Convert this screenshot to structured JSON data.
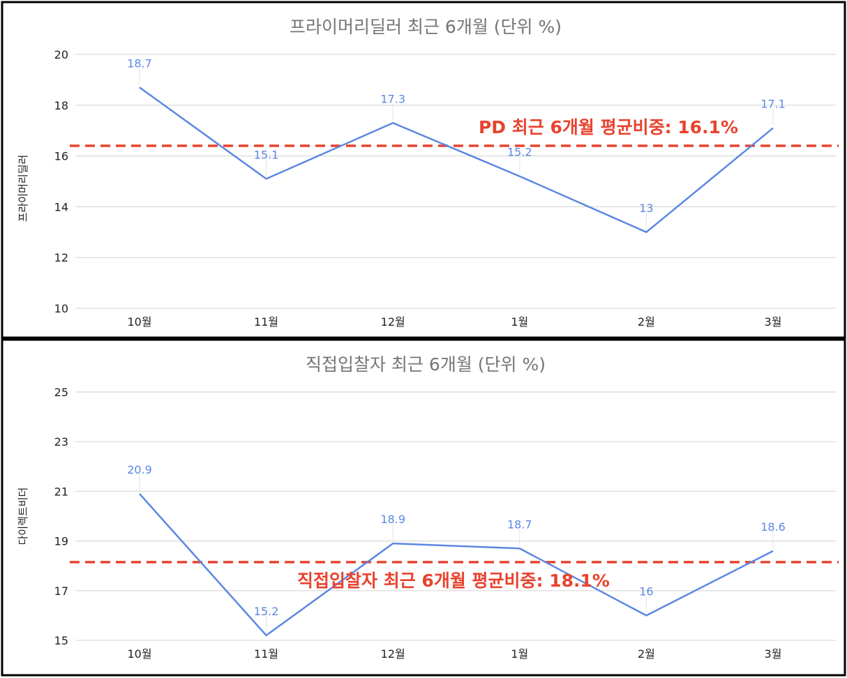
{
  "colors": {
    "line": "#5b87e3",
    "avg_line": "#e8432e",
    "grid": "#d9d9d9",
    "title": "#757575",
    "tick": "#222222",
    "frame": "#000000"
  },
  "chart_data": [
    {
      "type": "line",
      "title": "프라이머리딜러 최근 6개월 (단위 %)",
      "ylabel": "프라이머리딜러",
      "xlabel": "",
      "categories": [
        "10월",
        "11월",
        "12월",
        "1월",
        "2월",
        "3월"
      ],
      "series": [
        {
          "values": [
            18.7,
            15.1,
            17.3,
            15.2,
            13,
            17.1
          ]
        }
      ],
      "data_labels": [
        "18.7",
        "15.1",
        "17.3",
        "15.2",
        "13",
        "17.1"
      ],
      "ylim": [
        10,
        20
      ],
      "yticks": [
        10,
        12,
        14,
        16,
        18,
        20
      ],
      "grid": true,
      "legend": "none",
      "reference_line": {
        "value": 16.4,
        "style": "dashed"
      },
      "annotation": "PD 최근 6개월 평균비중: 16.1%"
    },
    {
      "type": "line",
      "title": "직접입찰자 최근 6개월 (단위 %)",
      "ylabel": "다이렉트비더",
      "xlabel": "",
      "categories": [
        "10월",
        "11월",
        "12월",
        "1월",
        "2월",
        "3월"
      ],
      "series": [
        {
          "values": [
            20.9,
            15.2,
            18.9,
            18.7,
            16,
            18.6
          ]
        }
      ],
      "data_labels": [
        "20.9",
        "15.2",
        "18.9",
        "18.7",
        "16",
        "18.6"
      ],
      "ylim": [
        15,
        25
      ],
      "yticks": [
        15,
        17,
        19,
        21,
        23,
        25
      ],
      "grid": true,
      "legend": "none",
      "reference_line": {
        "value": 18.15,
        "style": "dashed"
      },
      "annotation": "직접입찰자 최근 6개월 평균비중: 18.1%"
    }
  ]
}
